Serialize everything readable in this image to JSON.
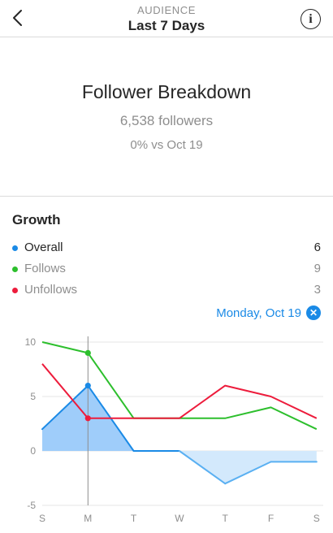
{
  "header": {
    "back_icon": "chevron-left-icon",
    "subtitle": "AUDIENCE",
    "title": "Last 7 Days",
    "info_icon": "info-icon",
    "info_glyph": "i"
  },
  "summary": {
    "title": "Follower Breakdown",
    "followers": "6,538 followers",
    "comparison": "0% vs Oct 19"
  },
  "growth": {
    "title": "Growth",
    "legend": [
      {
        "label": "Overall",
        "value": "6",
        "color": "#1a8ae6"
      },
      {
        "label": "Follows",
        "value": "9",
        "color": "#2dbf2d"
      },
      {
        "label": "Unfollows",
        "value": "3",
        "color": "#ed1c3c"
      }
    ],
    "selected_date": "Monday, Oct 19",
    "clear_glyph": "✕",
    "accent": "#1a8ae6"
  },
  "chart_data": {
    "type": "line",
    "categories": [
      "S",
      "M",
      "T",
      "W",
      "T",
      "F",
      "S"
    ],
    "ylim": [
      -5,
      10
    ],
    "yticks": [
      -5,
      0,
      5,
      10
    ],
    "grid": true,
    "selected_index": 1,
    "series": [
      {
        "name": "Overall",
        "color": "#1a8ae6",
        "values": [
          2,
          6,
          0,
          0,
          -3,
          -1,
          -1
        ],
        "fill_positive": "#9fcdfa",
        "fill_negative": "#d3e9fc",
        "line_negative": "#5ab0f2"
      },
      {
        "name": "Follows",
        "color": "#2dbf2d",
        "values": [
          10,
          9,
          3,
          3,
          3,
          4,
          2
        ]
      },
      {
        "name": "Unfollows",
        "color": "#ed1c3c",
        "values": [
          8,
          3,
          3,
          3,
          6,
          5,
          3
        ]
      }
    ]
  }
}
